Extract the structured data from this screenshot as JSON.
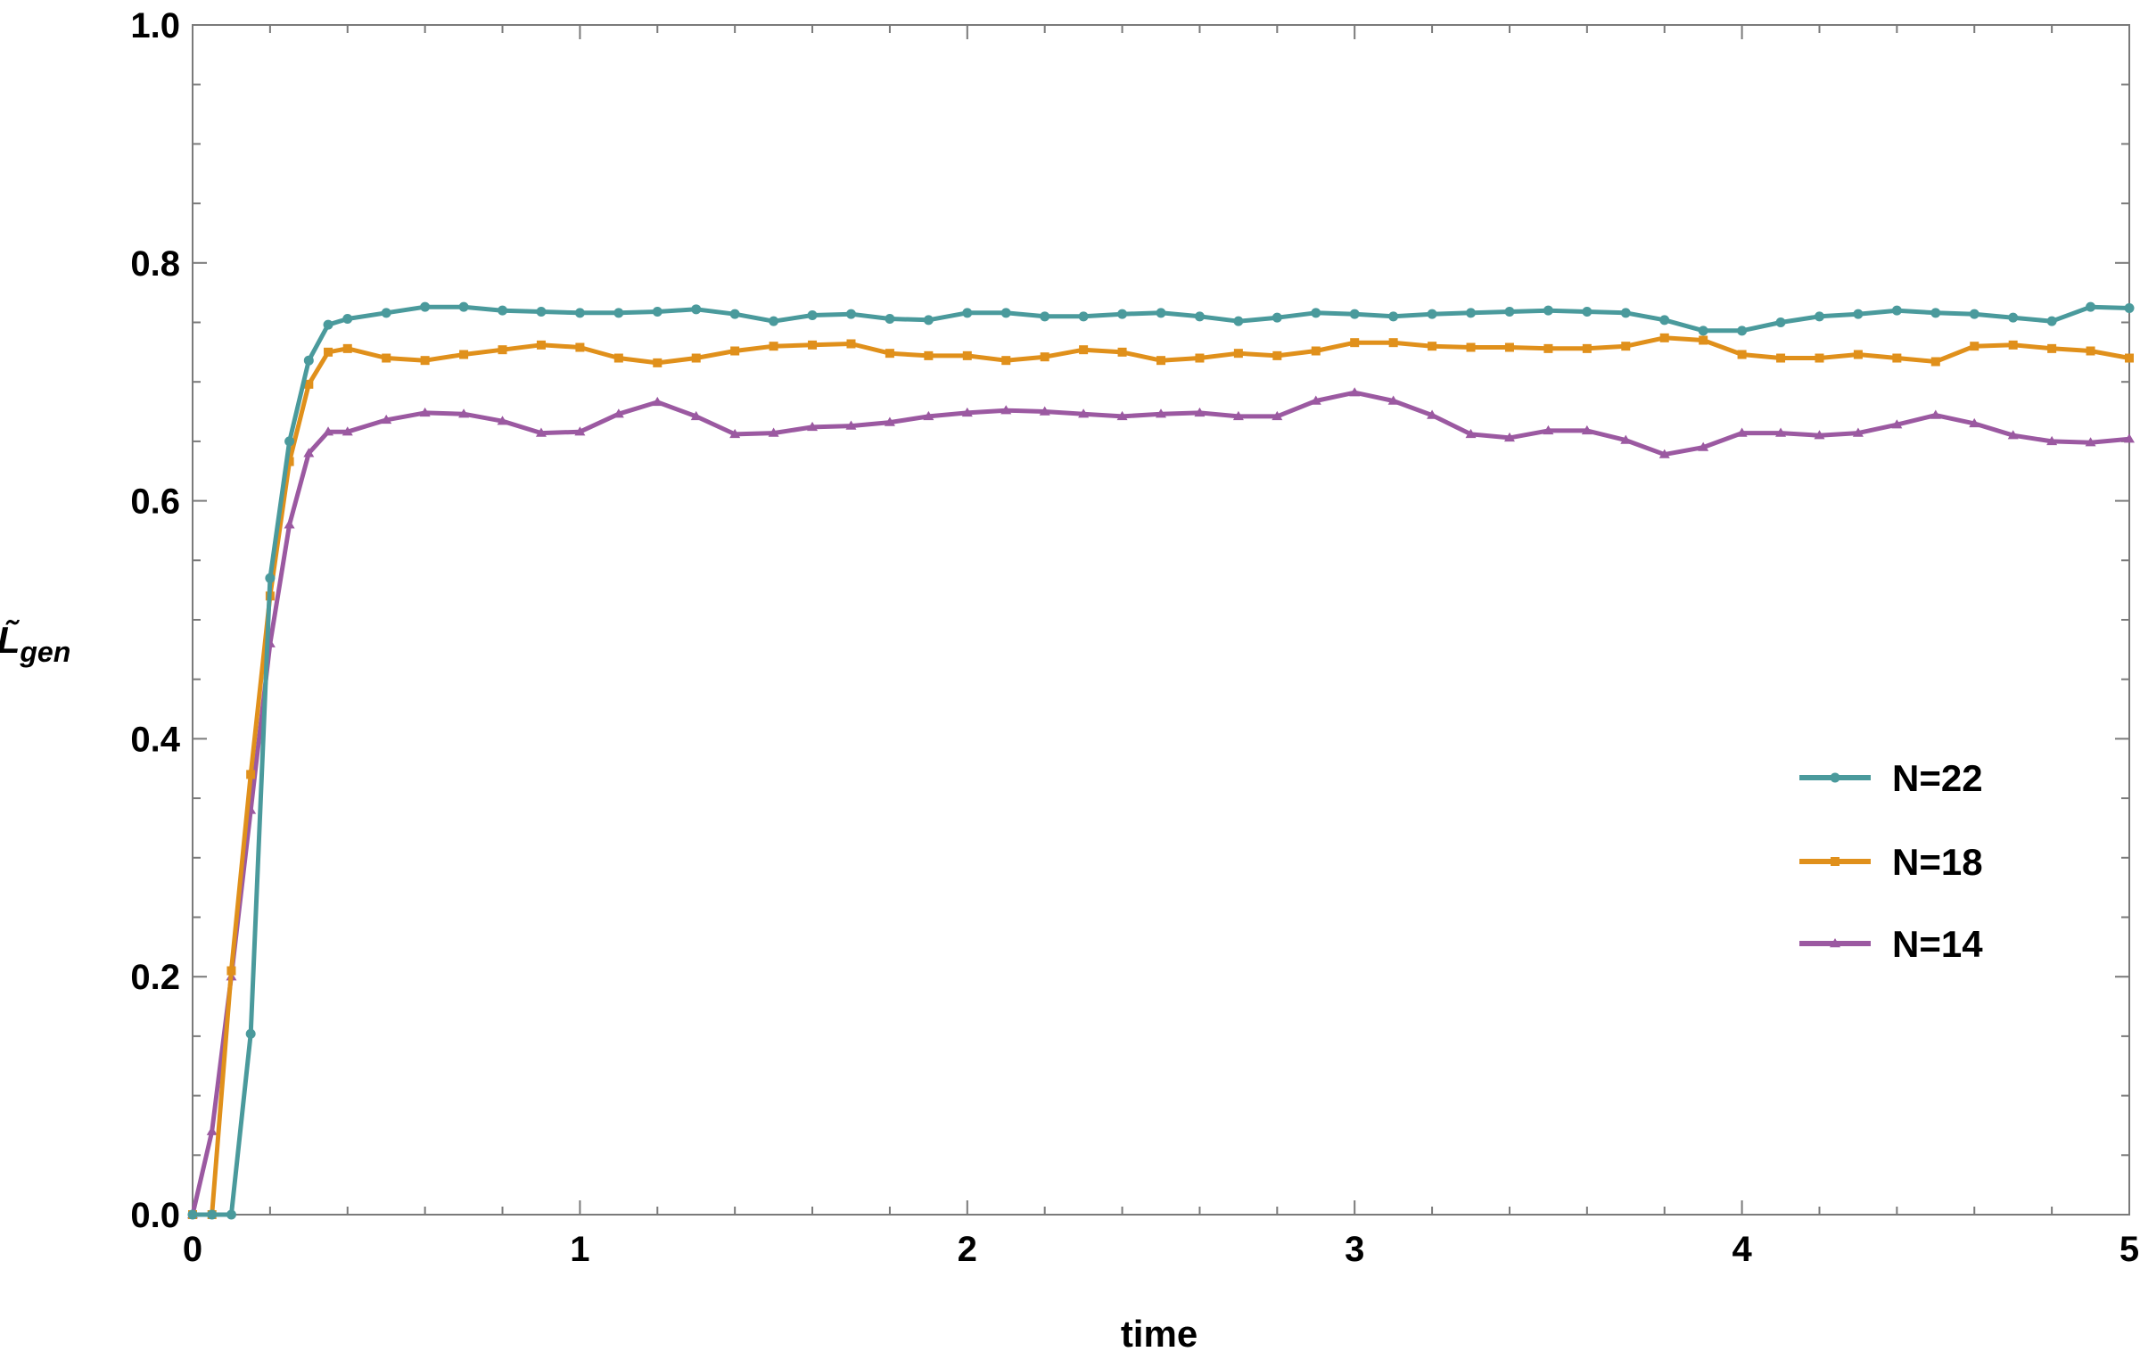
{
  "chart_data": {
    "type": "line",
    "xlabel": "time",
    "ylabel": "L̃",
    "ylabel_sub": "gen",
    "xlim": [
      0,
      5
    ],
    "ylim": [
      0,
      1
    ],
    "xticks": [
      0,
      1,
      2,
      3,
      4,
      5
    ],
    "xtick_labels": [
      "0",
      "1",
      "2",
      "3",
      "4",
      "5"
    ],
    "yticks": [
      0,
      0.2,
      0.4,
      0.6,
      0.8,
      1.0
    ],
    "ytick_labels": [
      "0.0",
      "0.2",
      "0.4",
      "0.6",
      "0.8",
      "1.0"
    ],
    "grid": false,
    "legend_position": "center-right",
    "series": [
      {
        "name": "N=22",
        "color": "#4a9a9c",
        "marker": "circle",
        "x": [
          0,
          0.05,
          0.1,
          0.15,
          0.2,
          0.25,
          0.3,
          0.35,
          0.4,
          0.5,
          0.6,
          0.7,
          0.8,
          0.9,
          1.0,
          1.1,
          1.2,
          1.3,
          1.4,
          1.5,
          1.6,
          1.7,
          1.8,
          1.9,
          2.0,
          2.1,
          2.2,
          2.3,
          2.4,
          2.5,
          2.6,
          2.7,
          2.8,
          2.9,
          3.0,
          3.1,
          3.2,
          3.3,
          3.4,
          3.5,
          3.6,
          3.7,
          3.8,
          3.9,
          4.0,
          4.1,
          4.2,
          4.3,
          4.4,
          4.5,
          4.6,
          4.7,
          4.8,
          4.9,
          5.0
        ],
        "values": [
          0.0,
          0.0,
          0.0,
          0.152,
          0.535,
          0.65,
          0.718,
          0.748,
          0.753,
          0.758,
          0.763,
          0.763,
          0.76,
          0.759,
          0.758,
          0.758,
          0.759,
          0.761,
          0.757,
          0.751,
          0.756,
          0.757,
          0.753,
          0.752,
          0.758,
          0.758,
          0.755,
          0.755,
          0.757,
          0.758,
          0.755,
          0.751,
          0.754,
          0.758,
          0.757,
          0.755,
          0.757,
          0.758,
          0.759,
          0.76,
          0.759,
          0.758,
          0.752,
          0.743,
          0.743,
          0.75,
          0.755,
          0.757,
          0.76,
          0.758,
          0.757,
          0.754,
          0.751,
          0.763,
          0.762
        ]
      },
      {
        "name": "N=18",
        "color": "#e0901b",
        "marker": "square",
        "x": [
          0,
          0.05,
          0.1,
          0.15,
          0.2,
          0.25,
          0.3,
          0.35,
          0.4,
          0.5,
          0.6,
          0.7,
          0.8,
          0.9,
          1.0,
          1.1,
          1.2,
          1.3,
          1.4,
          1.5,
          1.6,
          1.7,
          1.8,
          1.9,
          2.0,
          2.1,
          2.2,
          2.3,
          2.4,
          2.5,
          2.6,
          2.7,
          2.8,
          2.9,
          3.0,
          3.1,
          3.2,
          3.3,
          3.4,
          3.5,
          3.6,
          3.7,
          3.8,
          3.9,
          4.0,
          4.1,
          4.2,
          4.3,
          4.4,
          4.5,
          4.6,
          4.7,
          4.8,
          4.9,
          5.0
        ],
        "values": [
          0.0,
          0.0,
          0.205,
          0.37,
          0.52,
          0.633,
          0.698,
          0.725,
          0.728,
          0.72,
          0.718,
          0.723,
          0.727,
          0.731,
          0.729,
          0.72,
          0.716,
          0.72,
          0.726,
          0.73,
          0.731,
          0.732,
          0.724,
          0.722,
          0.722,
          0.718,
          0.721,
          0.727,
          0.725,
          0.718,
          0.72,
          0.724,
          0.722,
          0.726,
          0.733,
          0.733,
          0.73,
          0.729,
          0.729,
          0.728,
          0.728,
          0.73,
          0.737,
          0.735,
          0.723,
          0.72,
          0.72,
          0.723,
          0.72,
          0.717,
          0.73,
          0.731,
          0.728,
          0.726,
          0.72
        ]
      },
      {
        "name": "N=14",
        "color": "#9b59a1",
        "marker": "triangle",
        "x": [
          0,
          0.05,
          0.1,
          0.15,
          0.2,
          0.25,
          0.3,
          0.35,
          0.4,
          0.5,
          0.6,
          0.7,
          0.8,
          0.9,
          1.0,
          1.1,
          1.2,
          1.3,
          1.4,
          1.5,
          1.6,
          1.7,
          1.8,
          1.9,
          2.0,
          2.1,
          2.2,
          2.3,
          2.4,
          2.5,
          2.6,
          2.7,
          2.8,
          2.9,
          3.0,
          3.1,
          3.2,
          3.3,
          3.4,
          3.5,
          3.6,
          3.7,
          3.8,
          3.9,
          4.0,
          4.1,
          4.2,
          4.3,
          4.4,
          4.5,
          4.6,
          4.7,
          4.8,
          4.9,
          5.0
        ],
        "values": [
          0.0,
          0.07,
          0.2,
          0.34,
          0.48,
          0.58,
          0.64,
          0.658,
          0.658,
          0.668,
          0.674,
          0.673,
          0.667,
          0.657,
          0.658,
          0.673,
          0.683,
          0.671,
          0.656,
          0.657,
          0.662,
          0.663,
          0.666,
          0.671,
          0.674,
          0.676,
          0.675,
          0.673,
          0.671,
          0.673,
          0.674,
          0.671,
          0.671,
          0.684,
          0.691,
          0.684,
          0.672,
          0.656,
          0.653,
          0.659,
          0.659,
          0.651,
          0.639,
          0.645,
          0.657,
          0.657,
          0.655,
          0.657,
          0.664,
          0.672,
          0.665,
          0.655,
          0.65,
          0.649,
          0.652
        ]
      }
    ]
  }
}
